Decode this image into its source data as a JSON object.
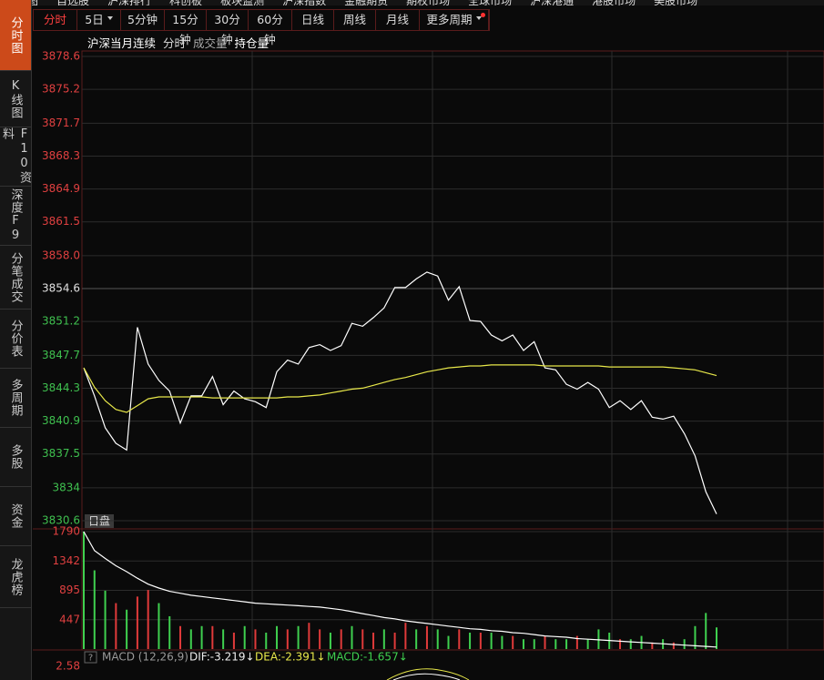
{
  "top_menu": [
    "全景图",
    "自选股",
    "沪深排行",
    "科创板",
    "板块监测",
    "沪深指数",
    "金融期货",
    "期权市场",
    "全球市场",
    "沪深港通",
    "港股市场",
    "美股市场"
  ],
  "sidebar": [
    "分时图",
    "K线图",
    "F10资料",
    "深度F9",
    "分笔成交",
    "分价表",
    "多周期",
    "多股",
    "资金",
    "龙虎榜"
  ],
  "period_tabs": [
    "分时",
    "5日",
    "5分钟",
    "15分钟",
    "30分钟",
    "60分钟",
    "日线",
    "周线",
    "月线",
    "更多周期"
  ],
  "sub_tabs": [
    "沪深当月连续",
    "分时",
    "成交量",
    "持仓量"
  ],
  "session_label": "日盘",
  "macd": {
    "title": "MACD (12,26,9)",
    "dif": "DIF:-3.219↓",
    "dea": "DEA:-2.391↓",
    "macd": "MACD:-1.657↓",
    "yticks": [
      2.58
    ]
  },
  "chart_data": [
    {
      "type": "line",
      "ylim": [
        3830.6,
        3878.6
      ],
      "yticks": [
        3878.6,
        3875.2,
        3871.7,
        3868.3,
        3864.9,
        3861.5,
        {
          "value": 3858,
          "label": "3858.0"
        },
        3854.6,
        3851.2,
        3847.7,
        3844.3,
        3840.9,
        3837.5,
        3834.0,
        3830.6
      ],
      "grid": true,
      "series": [
        {
          "color": "#ffffff",
          "values": [
            3846.4,
            3843.5,
            3840.2,
            3838.6,
            3837.9,
            3850.6,
            3846.8,
            3845.1,
            3844.0,
            3840.7,
            3843.5,
            3843.5,
            3845.5,
            3842.6,
            3844.0,
            3843.2,
            3842.9,
            3842.3,
            3846.0,
            3847.2,
            3846.8,
            3848.5,
            3848.8,
            3848.2,
            3848.7,
            3851.0,
            3850.7,
            3851.6,
            3852.6,
            3854.7,
            3854.7,
            3855.6,
            3856.3,
            3855.9,
            3853.4,
            3854.8,
            3851.3,
            3851.2,
            3849.8,
            3849.2,
            3849.8,
            3848.2,
            3849.1,
            3846.4,
            3846.2,
            3844.7,
            3844.2,
            3844.9,
            3844.2,
            3842.3,
            3843.0,
            3842.1,
            3843.0,
            3841.3,
            3841.1,
            3841.4,
            3839.6,
            3837.3,
            3833.6,
            3831.3
          ]
        },
        {
          "color": "#e8e84a",
          "values": [
            3846.4,
            3844.4,
            3843.0,
            3842.1,
            3841.8,
            3842.5,
            3843.2,
            3843.4,
            3843.4,
            3843.4,
            3843.4,
            3843.4,
            3843.3,
            3843.3,
            3843.3,
            3843.3,
            3843.3,
            3843.3,
            3843.3,
            3843.4,
            3843.4,
            3843.5,
            3843.6,
            3843.8,
            3844.0,
            3844.2,
            3844.3,
            3844.6,
            3844.9,
            3845.2,
            3845.4,
            3845.7,
            3846.0,
            3846.2,
            3846.4,
            3846.5,
            3846.6,
            3846.6,
            3846.7,
            3846.7,
            3846.7,
            3846.7,
            3846.7,
            3846.6,
            3846.6,
            3846.6,
            3846.6,
            3846.6,
            3846.6,
            3846.5,
            3846.5,
            3846.5,
            3846.5,
            3846.5,
            3846.5,
            3846.4,
            3846.3,
            3846.2,
            3845.9,
            3845.6
          ]
        }
      ]
    },
    {
      "type": "bar",
      "ylim": [
        0,
        1790
      ],
      "yticks": [
        1790,
        1342,
        895,
        447
      ],
      "series": [
        {
          "type": "bar",
          "values": [
            1790,
            1200,
            890,
            700,
            600,
            800,
            900,
            700,
            500,
            350,
            300,
            350,
            350,
            300,
            250,
            350,
            300,
            250,
            350,
            300,
            350,
            400,
            300,
            250,
            300,
            350,
            300,
            250,
            300,
            250,
            400,
            300,
            350,
            300,
            200,
            300,
            250,
            250,
            250,
            200,
            200,
            150,
            150,
            200,
            150,
            150,
            200,
            150,
            300,
            250,
            150,
            150,
            200,
            100,
            150,
            100,
            150,
            350,
            550,
            330
          ],
          "colors": [
            "#3fd04f",
            "#3fd04f",
            "#3fd04f",
            "#e03a3a",
            "#3fd04f",
            "#e03a3a",
            "#e03a3a",
            "#3fd04f",
            "#3fd04f",
            "#e03a3a",
            "#3fd04f",
            "#3fd04f",
            "#e03a3a",
            "#3fd04f",
            "#e03a3a",
            "#3fd04f",
            "#e03a3a",
            "#3fd04f",
            "#3fd04f",
            "#e03a3a",
            "#3fd04f",
            "#e03a3a",
            "#e03a3a",
            "#3fd04f",
            "#e03a3a",
            "#3fd04f",
            "#e03a3a",
            "#e03a3a",
            "#3fd04f",
            "#e03a3a",
            "#e03a3a",
            "#3fd04f",
            "#e03a3a",
            "#3fd04f",
            "#3fd04f",
            "#e03a3a",
            "#3fd04f",
            "#e03a3a",
            "#3fd04f",
            "#3fd04f",
            "#e03a3a",
            "#3fd04f",
            "#3fd04f",
            "#e03a3a",
            "#3fd04f",
            "#3fd04f",
            "#e03a3a",
            "#3fd04f",
            "#3fd04f",
            "#3fd04f",
            "#e03a3a",
            "#3fd04f",
            "#3fd04f",
            "#e03a3a",
            "#3fd04f",
            "#e03a3a",
            "#3fd04f",
            "#3fd04f",
            "#3fd04f",
            "#3fd04f"
          ]
        },
        {
          "type": "line",
          "color": "#ffffff",
          "values": [
            1790,
            1500,
            1380,
            1270,
            1180,
            1080,
            990,
            930,
            880,
            850,
            820,
            800,
            780,
            760,
            740,
            720,
            700,
            690,
            680,
            670,
            660,
            650,
            640,
            620,
            600,
            570,
            540,
            510,
            480,
            460,
            430,
            410,
            390,
            370,
            350,
            330,
            310,
            300,
            280,
            270,
            250,
            240,
            220,
            200,
            190,
            180,
            160,
            150,
            140,
            130,
            120,
            110,
            100,
            90,
            80,
            70,
            60,
            50,
            40,
            30
          ]
        }
      ]
    }
  ]
}
